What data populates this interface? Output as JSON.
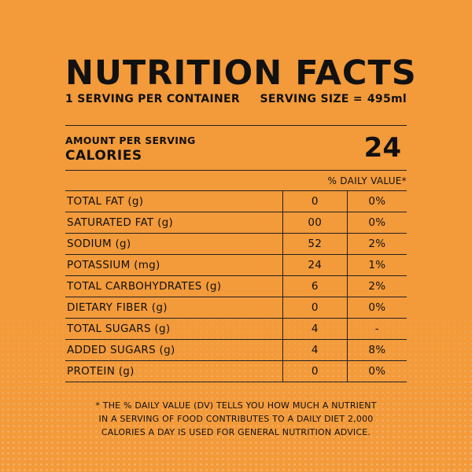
{
  "label": {
    "title": "NUTRITION FACTS",
    "servings_per_container": "1 SERVING PER CONTAINER",
    "serving_size_label": "SERVING SIZE =",
    "serving_size_value": "495ml",
    "amount_per_serving": "AMOUNT PER SERVING",
    "calories_label": "CALORIES",
    "calories_value": "24",
    "daily_value_header": "% DAILY VALUE*",
    "nutrients": [
      {
        "name": "TOTAL FAT (g)",
        "amount": "0",
        "dv": "0%"
      },
      {
        "name": "SATURATED FAT (g)",
        "amount": "00",
        "dv": "0%"
      },
      {
        "name": "SODIUM (g)",
        "amount": "52",
        "dv": "2%"
      },
      {
        "name": "POTASSIUM (mg)",
        "amount": "24",
        "dv": "1%"
      },
      {
        "name": "TOTAL CARBOHYDRATES (g)",
        "amount": "6",
        "dv": "2%"
      },
      {
        "name": "DIETARY FIBER (g)",
        "amount": "0",
        "dv": "0%"
      },
      {
        "name": "TOTAL SUGARS (g)",
        "amount": "4",
        "dv": "-"
      },
      {
        "name": "ADDED SUGARS (g)",
        "amount": "4",
        "dv": "8%"
      },
      {
        "name": "PROTEIN (g)",
        "amount": "0",
        "dv": "0%"
      }
    ],
    "footnote_lines": [
      "* THE % DAILY VALUE (DV) TELLS YOU HOW MUCH A NUTRIENT",
      "IN A SERVING OF FOOD CONTRIBUTES TO A DAILY DIET 2,000",
      "CALORIES A DAY IS USED FOR GENERAL NUTRITION ADVICE."
    ]
  },
  "colors": {
    "background": "#f39a3a",
    "text": "#111111"
  }
}
